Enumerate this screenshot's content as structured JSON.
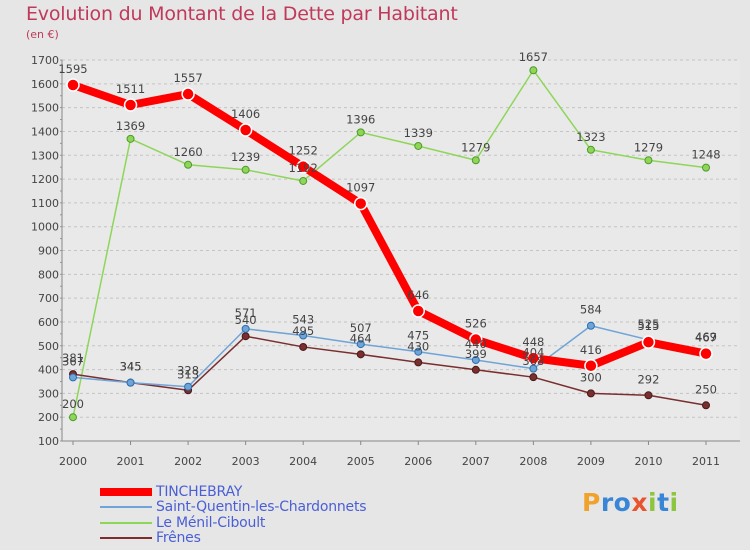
{
  "header": {
    "title": "Evolution du Montant de la Dette par Habitant",
    "subtitle": "(en €)"
  },
  "logo": {
    "text": "Proxiti",
    "letters": [
      {
        "ch": "P",
        "color": "#f0a22a"
      },
      {
        "ch": "r",
        "color": "#3a86d6"
      },
      {
        "ch": "o",
        "color": "#3a86d6"
      },
      {
        "ch": "x",
        "color": "#e8542e"
      },
      {
        "ch": "i",
        "color": "#8cc63f"
      },
      {
        "ch": "t",
        "color": "#3a86d6"
      },
      {
        "ch": "i",
        "color": "#8cc63f"
      }
    ]
  },
  "chart_data": {
    "type": "line",
    "title": "Evolution du Montant de la Dette par Habitant",
    "subtitle": "(en €)",
    "xlabel": "",
    "ylabel": "",
    "x": [
      "2000",
      "2001",
      "2002",
      "2003",
      "2004",
      "2005",
      "2006",
      "2007",
      "2008",
      "2009",
      "2010",
      "2011"
    ],
    "ylim": [
      100,
      1700
    ],
    "yticks": [
      100,
      200,
      300,
      400,
      500,
      600,
      700,
      800,
      900,
      1000,
      1100,
      1200,
      1300,
      1400,
      1500,
      1600,
      1700
    ],
    "grid": "horizontal dashed",
    "legend_position": "bottom-left",
    "series": [
      {
        "name": "TINCHEBRAY",
        "color": "#ff0000",
        "values": [
          1595,
          1511,
          1557,
          1406,
          1252,
          1097,
          646,
          526,
          448,
          416,
          515,
          467
        ]
      },
      {
        "name": "Saint-Quentin-les-Chardonnets",
        "color": "#6fa4d8",
        "values": [
          367,
          345,
          328,
          571,
          543,
          507,
          475,
          440,
          404,
          584,
          525,
          469
        ]
      },
      {
        "name": "Le Ménil-Ciboult",
        "color": "#8ed65a",
        "values": [
          200,
          1369,
          1260,
          1239,
          1192,
          1396,
          1339,
          1279,
          1657,
          1323,
          1279,
          1248
        ]
      },
      {
        "name": "Frênes",
        "color": "#7a2e2e",
        "values": [
          381,
          345,
          313,
          540,
          495,
          464,
          430,
          399,
          368,
          300,
          292,
          250
        ]
      }
    ]
  }
}
